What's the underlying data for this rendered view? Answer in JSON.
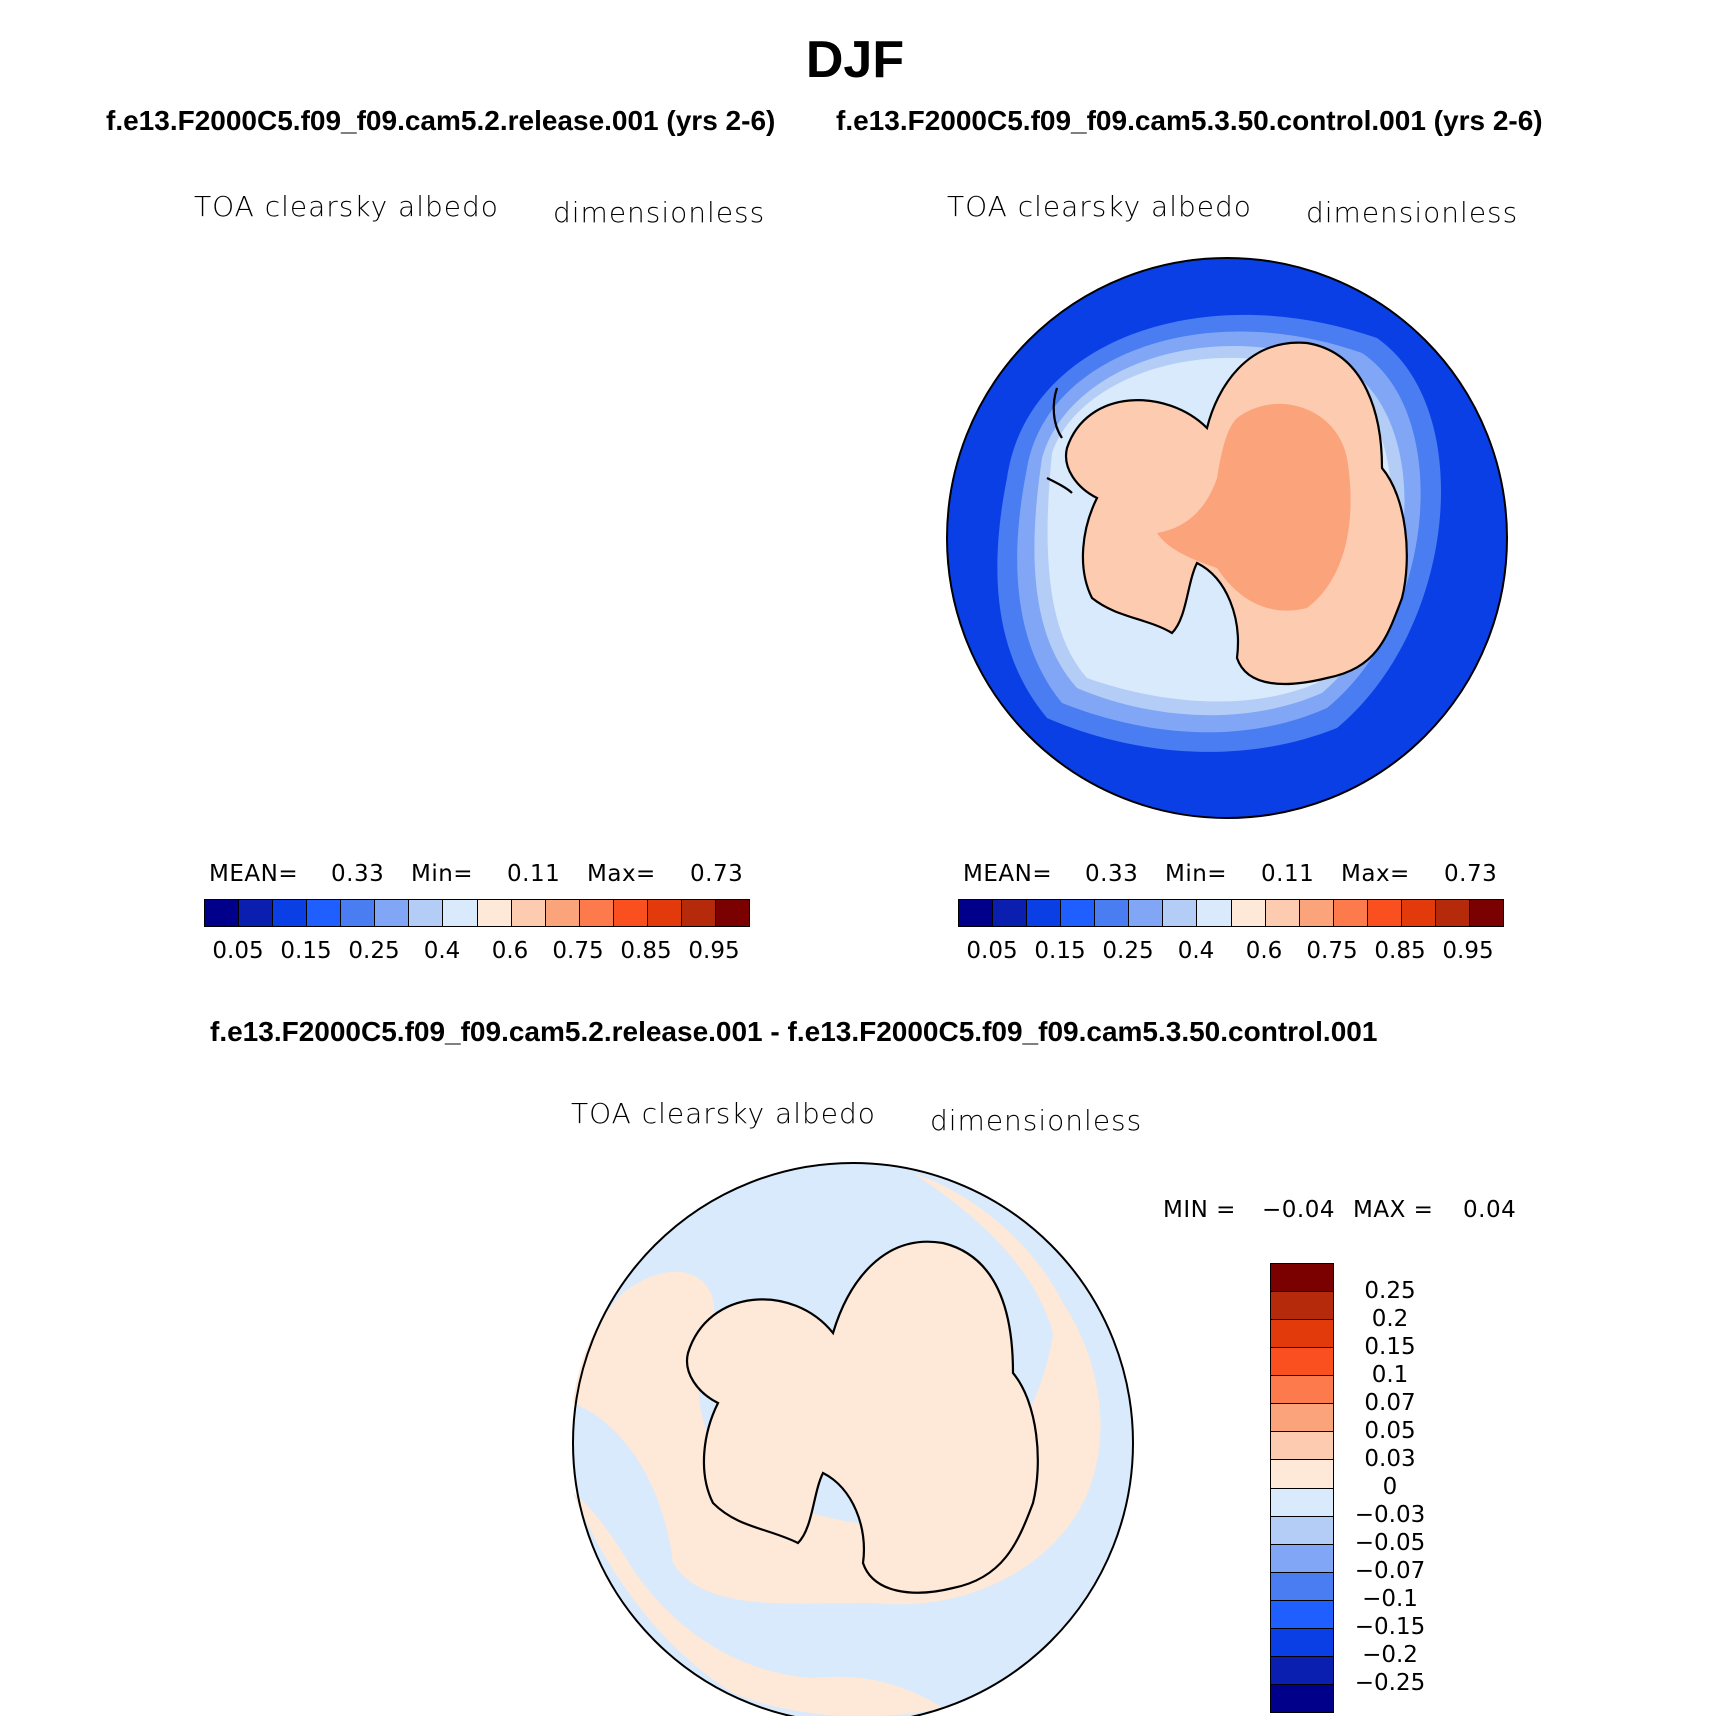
{
  "title": "DJF",
  "left_run": "f.e13.F2000C5.f09_f09.cam5.2.release.001 (yrs 2-6)",
  "right_run": "f.e13.F2000C5.f09_f09.cam5.3.50.control.001 (yrs 2-6)",
  "diff_title": "f.e13.F2000C5.f09_f09.cam5.2.release.001 - f.e13.F2000C5.f09_f09.cam5.3.50.control.001",
  "panel_left": {
    "variable": "TOA clearsky albedo",
    "units": "dimensionless",
    "stats": {
      "mean_label": "MEAN=",
      "mean": "0.33",
      "min_label": "Min=",
      "min": "0.11",
      "max_label": "Max=",
      "max": "0.73"
    }
  },
  "panel_right": {
    "variable": "TOA clearsky albedo",
    "units": "dimensionless",
    "stats": {
      "mean_label": "MEAN=",
      "mean": "0.33",
      "min_label": "Min=",
      "min": "0.11",
      "max_label": "Max=",
      "max": "0.73"
    }
  },
  "panel_diff": {
    "variable": "TOA clearsky albedo",
    "units": "dimensionless",
    "minmax": {
      "min_label": "MIN =",
      "min": "−0.04",
      "max_label": "MAX =",
      "max": "0.04"
    }
  },
  "abs_colorbar": {
    "ticks": [
      "0.05",
      "0.15",
      "0.25",
      "0.4",
      "0.6",
      "0.75",
      "0.85",
      "0.95"
    ],
    "colors": [
      "#00008b",
      "#0a1fb0",
      "#0a3fe6",
      "#1f5fff",
      "#4a7cf2",
      "#80a6f5",
      "#b3cdf7",
      "#d8eafc",
      "#fee8d8",
      "#fdcbb0",
      "#fba47c",
      "#fc7a4c",
      "#fa5020",
      "#e33a0c",
      "#b62a0c",
      "#7b0000"
    ]
  },
  "diff_colorbar": {
    "ticks": [
      "0.25",
      "0.2",
      "0.15",
      "0.1",
      "0.07",
      "0.05",
      "0.03",
      "0",
      "−0.03",
      "−0.05",
      "−0.07",
      "−0.1",
      "−0.15",
      "−0.2",
      "−0.25"
    ],
    "colors": [
      "#7b0000",
      "#b62a0c",
      "#e33a0c",
      "#fa5020",
      "#fc7a4c",
      "#fba47c",
      "#fdcbb0",
      "#fee8d8",
      "#d8eafc",
      "#b3cdf7",
      "#80a6f5",
      "#4a7cf2",
      "#1f5fff",
      "#0a3fe6",
      "#0a1fb0",
      "#00008b"
    ]
  },
  "map_colors": {
    "ocean": "#0a3fe6",
    "ice_shelf_1": "#4a7cf2",
    "ice_shelf_2": "#80a6f5",
    "ice_shelf_3": "#b3cdf7",
    "ice_shelf_4": "#d8eafc",
    "land": "#fdcbb0",
    "land_high": "#fba47c",
    "diff_positive": "#fee8d8",
    "diff_negative": "#d8eafc"
  }
}
